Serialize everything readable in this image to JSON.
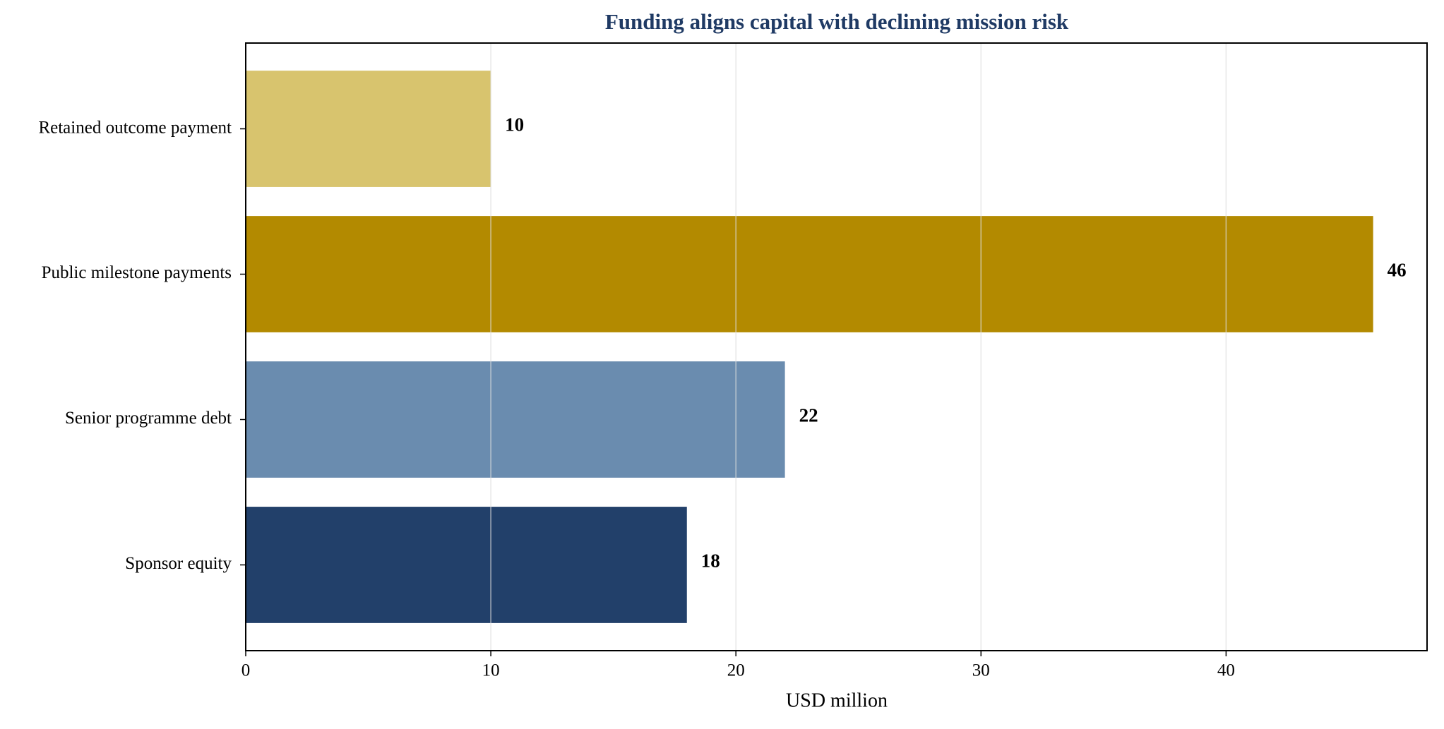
{
  "chart_data": {
    "type": "barh",
    "title": "Funding aligns capital with declining mission risk",
    "xlabel": "USD million",
    "categories": [
      "Retained outcome payment",
      "Public milestone payments",
      "Senior programme debt",
      "Sponsor equity"
    ],
    "values": [
      10,
      46,
      22,
      18
    ],
    "colors": [
      "#d8c46e",
      "#b38a00",
      "#6a8caf",
      "#22406a"
    ],
    "xlim": [
      0,
      48.2
    ],
    "xticks": [
      0,
      10,
      20,
      30,
      40
    ],
    "grid": true
  }
}
